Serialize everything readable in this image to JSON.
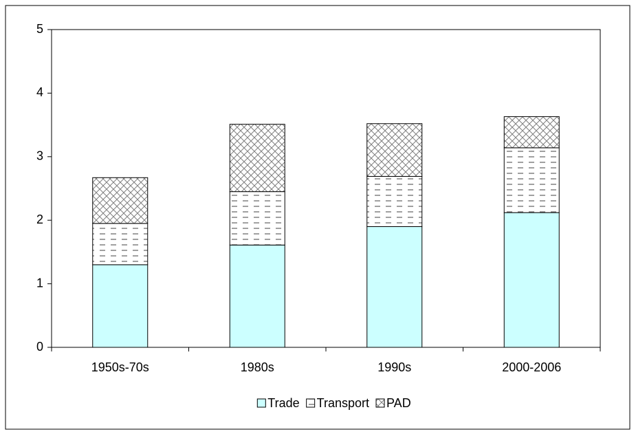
{
  "chart_data": {
    "type": "stacked_bar",
    "categories": [
      "1950s-70s",
      "1980s",
      "1990s",
      "2000-2006"
    ],
    "series": [
      {
        "name": "Trade",
        "color": "#ccffff",
        "pattern": "solid",
        "values": [
          1.3,
          1.61,
          1.9,
          2.12
        ]
      },
      {
        "name": "Transport",
        "color": "#808080",
        "pattern": "dashes",
        "values": [
          0.65,
          0.84,
          0.79,
          1.02
        ]
      },
      {
        "name": "PAD",
        "color": "#808080",
        "pattern": "crosshatch",
        "values": [
          0.72,
          1.06,
          0.83,
          0.49
        ]
      }
    ],
    "ylim": [
      0,
      5
    ],
    "yticks": [
      0,
      1,
      2,
      3,
      4,
      5
    ],
    "grid": false,
    "legend": "bottom"
  }
}
